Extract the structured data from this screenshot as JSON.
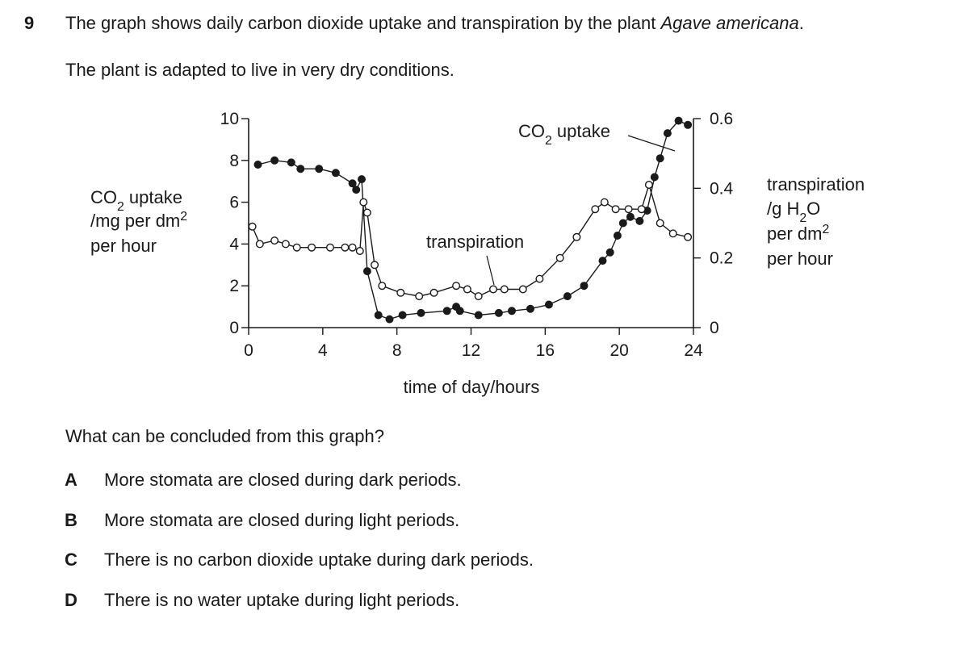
{
  "question": {
    "number": "9",
    "stem_pre": "The graph shows daily carbon dioxide uptake and transpiration by the plant ",
    "stem_species": "Agave americana",
    "stem_post": ".",
    "context": "The plant is adapted to live in very dry conditions.",
    "prompt": "What can be concluded from this graph?",
    "options": [
      {
        "letter": "A",
        "text": "More stomata are closed during dark periods."
      },
      {
        "letter": "B",
        "text": "More stomata are closed during light periods."
      },
      {
        "letter": "C",
        "text": "There is no carbon dioxide uptake during dark periods."
      },
      {
        "letter": "D",
        "text": "There is no water uptake during light periods."
      }
    ]
  },
  "chart_data": {
    "type": "line",
    "xlabel": "time of day / hours",
    "x_ticks": [
      "0",
      "4",
      "8",
      "12",
      "16",
      "20",
      "24"
    ],
    "xlim": [
      0,
      24
    ],
    "left_axis": {
      "label_lines": [
        "CO₂ uptake",
        "/ mg per dm²",
        "per hour"
      ],
      "ticks": [
        "0",
        "2",
        "4",
        "6",
        "8",
        "10"
      ],
      "ylim": [
        0,
        10
      ]
    },
    "right_axis": {
      "label_lines": [
        "transpiration",
        "/ g H₂O",
        "per dm²",
        "per hour"
      ],
      "ticks": [
        "0",
        "0.2",
        "0.4",
        "0.6"
      ],
      "ylim": [
        0,
        0.6
      ]
    },
    "annotations": [
      {
        "text": "CO₂ uptake",
        "series": "CO₂ uptake"
      },
      {
        "text": "transpiration",
        "series": "transpiration"
      }
    ],
    "series": [
      {
        "name": "CO₂ uptake",
        "axis": "left",
        "marker": "filled",
        "points": [
          [
            0.5,
            7.8
          ],
          [
            1.4,
            8.0
          ],
          [
            2.3,
            7.9
          ],
          [
            2.8,
            7.6
          ],
          [
            3.8,
            7.6
          ],
          [
            4.7,
            7.4
          ],
          [
            5.6,
            6.9
          ],
          [
            5.8,
            6.6
          ],
          [
            6.1,
            7.1
          ],
          [
            6.4,
            2.7
          ],
          [
            7.0,
            0.6
          ],
          [
            7.6,
            0.4
          ],
          [
            8.3,
            0.6
          ],
          [
            9.3,
            0.7
          ],
          [
            10.7,
            0.8
          ],
          [
            11.2,
            1.0
          ],
          [
            11.4,
            0.8
          ],
          [
            12.4,
            0.6
          ],
          [
            13.5,
            0.7
          ],
          [
            14.2,
            0.8
          ],
          [
            15.2,
            0.9
          ],
          [
            16.2,
            1.1
          ],
          [
            17.2,
            1.5
          ],
          [
            18.1,
            2.0
          ],
          [
            19.1,
            3.2
          ],
          [
            19.5,
            3.6
          ],
          [
            19.9,
            4.4
          ],
          [
            20.2,
            5.0
          ],
          [
            20.6,
            5.3
          ],
          [
            21.1,
            5.1
          ],
          [
            21.5,
            5.6
          ],
          [
            21.9,
            7.2
          ],
          [
            22.2,
            8.1
          ],
          [
            22.6,
            9.3
          ],
          [
            23.2,
            9.9
          ],
          [
            23.7,
            9.7
          ]
        ]
      },
      {
        "name": "transpiration",
        "axis": "right",
        "marker": "open",
        "points": [
          [
            0.2,
            0.29
          ],
          [
            0.6,
            0.24
          ],
          [
            1.4,
            0.25
          ],
          [
            2.0,
            0.24
          ],
          [
            2.6,
            0.23
          ],
          [
            3.4,
            0.23
          ],
          [
            4.4,
            0.23
          ],
          [
            5.2,
            0.23
          ],
          [
            5.6,
            0.23
          ],
          [
            6.0,
            0.22
          ],
          [
            6.2,
            0.36
          ],
          [
            6.4,
            0.33
          ],
          [
            6.8,
            0.18
          ],
          [
            7.2,
            0.12
          ],
          [
            8.2,
            0.1
          ],
          [
            9.2,
            0.09
          ],
          [
            10.0,
            0.1
          ],
          [
            11.2,
            0.12
          ],
          [
            11.8,
            0.11
          ],
          [
            12.4,
            0.09
          ],
          [
            13.2,
            0.11
          ],
          [
            13.8,
            0.11
          ],
          [
            14.8,
            0.11
          ],
          [
            15.7,
            0.14
          ],
          [
            16.8,
            0.2
          ],
          [
            17.7,
            0.26
          ],
          [
            18.7,
            0.34
          ],
          [
            19.2,
            0.36
          ],
          [
            19.8,
            0.34
          ],
          [
            20.5,
            0.34
          ],
          [
            21.2,
            0.34
          ],
          [
            21.6,
            0.41
          ],
          [
            22.2,
            0.3
          ],
          [
            22.9,
            0.27
          ],
          [
            23.7,
            0.26
          ]
        ]
      }
    ]
  }
}
